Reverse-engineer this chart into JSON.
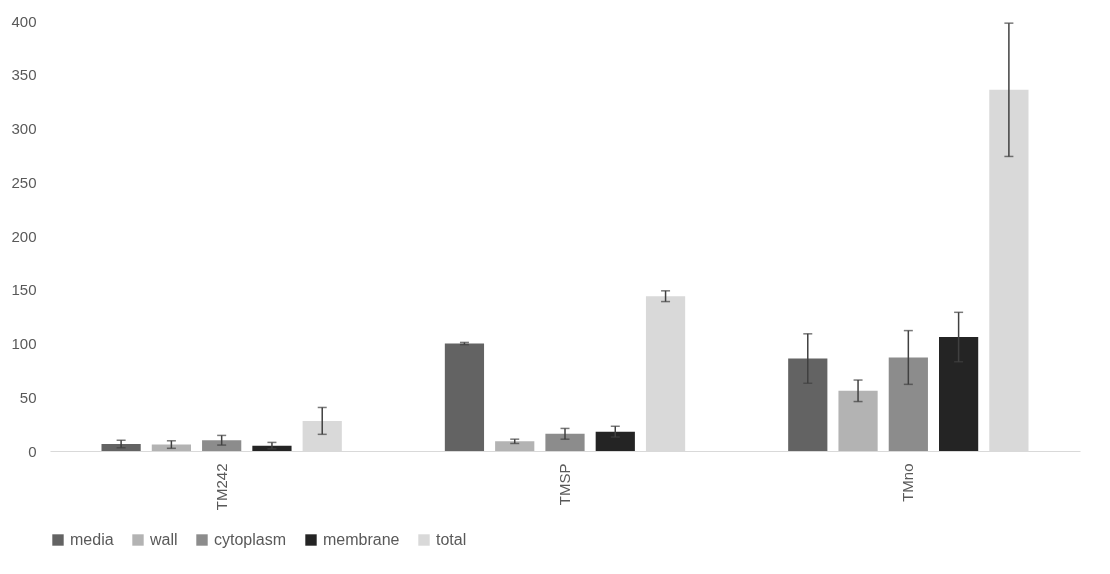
{
  "chart_data": {
    "type": "bar",
    "categories": [
      "TM242",
      "TMSP",
      "TMno"
    ],
    "series": [
      {
        "name": "media",
        "color": "#636363",
        "values": [
          6.5,
          100,
          86
        ],
        "errors": [
          3.5,
          1,
          23
        ]
      },
      {
        "name": "wall",
        "color": "#b3b3b3",
        "values": [
          6,
          9,
          56
        ],
        "errors": [
          3.5,
          2,
          10
        ]
      },
      {
        "name": "cytoplasm",
        "color": "#8c8c8c",
        "values": [
          10,
          16,
          87
        ],
        "errors": [
          4.5,
          5,
          25
        ]
      },
      {
        "name": "membrane",
        "color": "#242424",
        "values": [
          5,
          18,
          106
        ],
        "errors": [
          3,
          5,
          23
        ]
      },
      {
        "name": "total",
        "color": "#d9d9d9",
        "values": [
          28,
          144,
          336
        ],
        "errors": [
          12.5,
          5,
          62
        ]
      }
    ],
    "ylim": [
      0,
      400
    ],
    "yticks": [
      0,
      50,
      100,
      150,
      200,
      250,
      300,
      350,
      400
    ],
    "grid": false,
    "legend": "bottom"
  }
}
